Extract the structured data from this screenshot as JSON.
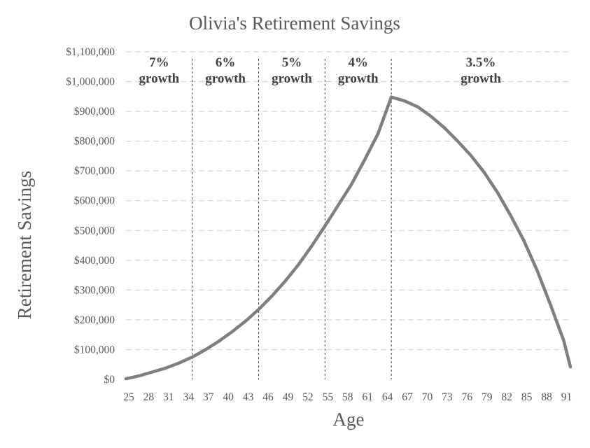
{
  "chart_data": {
    "type": "line",
    "title": "Olivia's Retirement Savings",
    "xlabel": "Age",
    "ylabel": "Retirement Savings",
    "ylim": [
      0,
      1100000
    ],
    "y_ticks": [
      "$0",
      "$100,000",
      "$200,000",
      "$300,000",
      "$400,000",
      "$500,000",
      "$600,000",
      "$700,000",
      "$800,000",
      "$900,000",
      "$1,000,000",
      "$1,100,000"
    ],
    "x_ticks": [
      "25",
      "28",
      "31",
      "34",
      "37",
      "40",
      "43",
      "46",
      "49",
      "52",
      "55",
      "58",
      "61",
      "64",
      "67",
      "70",
      "73",
      "76",
      "79",
      "82",
      "85",
      "88",
      "91"
    ],
    "x_range": [
      25,
      92
    ],
    "grid": true,
    "legend": "none",
    "line_color": "#7f7f7f",
    "series": [
      {
        "x": [
          25,
          27,
          29,
          31,
          33,
          35,
          37,
          39,
          41,
          43,
          45,
          47,
          49,
          51,
          53,
          55,
          57,
          59,
          61,
          63,
          65,
          67,
          69,
          71,
          73,
          75,
          77,
          79,
          81,
          83,
          85,
          87,
          89,
          91,
          92
        ],
        "values": [
          2000,
          12000,
          25000,
          38000,
          55000,
          75000,
          100000,
          128000,
          160000,
          195000,
          235000,
          280000,
          330000,
          385000,
          448000,
          515000,
          585000,
          655000,
          738000,
          825000,
          948000,
          935000,
          915000,
          883000,
          845000,
          800000,
          752000,
          695000,
          628000,
          550000,
          465000,
          365000,
          250000,
          130000,
          42000
        ]
      }
    ],
    "regions": [
      {
        "label_rate": "7%",
        "label_word": "growth",
        "from": 25,
        "to": 35
      },
      {
        "label_rate": "6%",
        "label_word": "growth",
        "from": 35,
        "to": 45
      },
      {
        "label_rate": "5%",
        "label_word": "growth",
        "from": 45,
        "to": 55
      },
      {
        "label_rate": "4%",
        "label_word": "growth",
        "from": 55,
        "to": 65
      },
      {
        "label_rate": "3.5%",
        "label_word": "growth",
        "from": 65,
        "to": 92
      }
    ],
    "dividers": [
      35,
      45,
      55,
      65
    ]
  }
}
